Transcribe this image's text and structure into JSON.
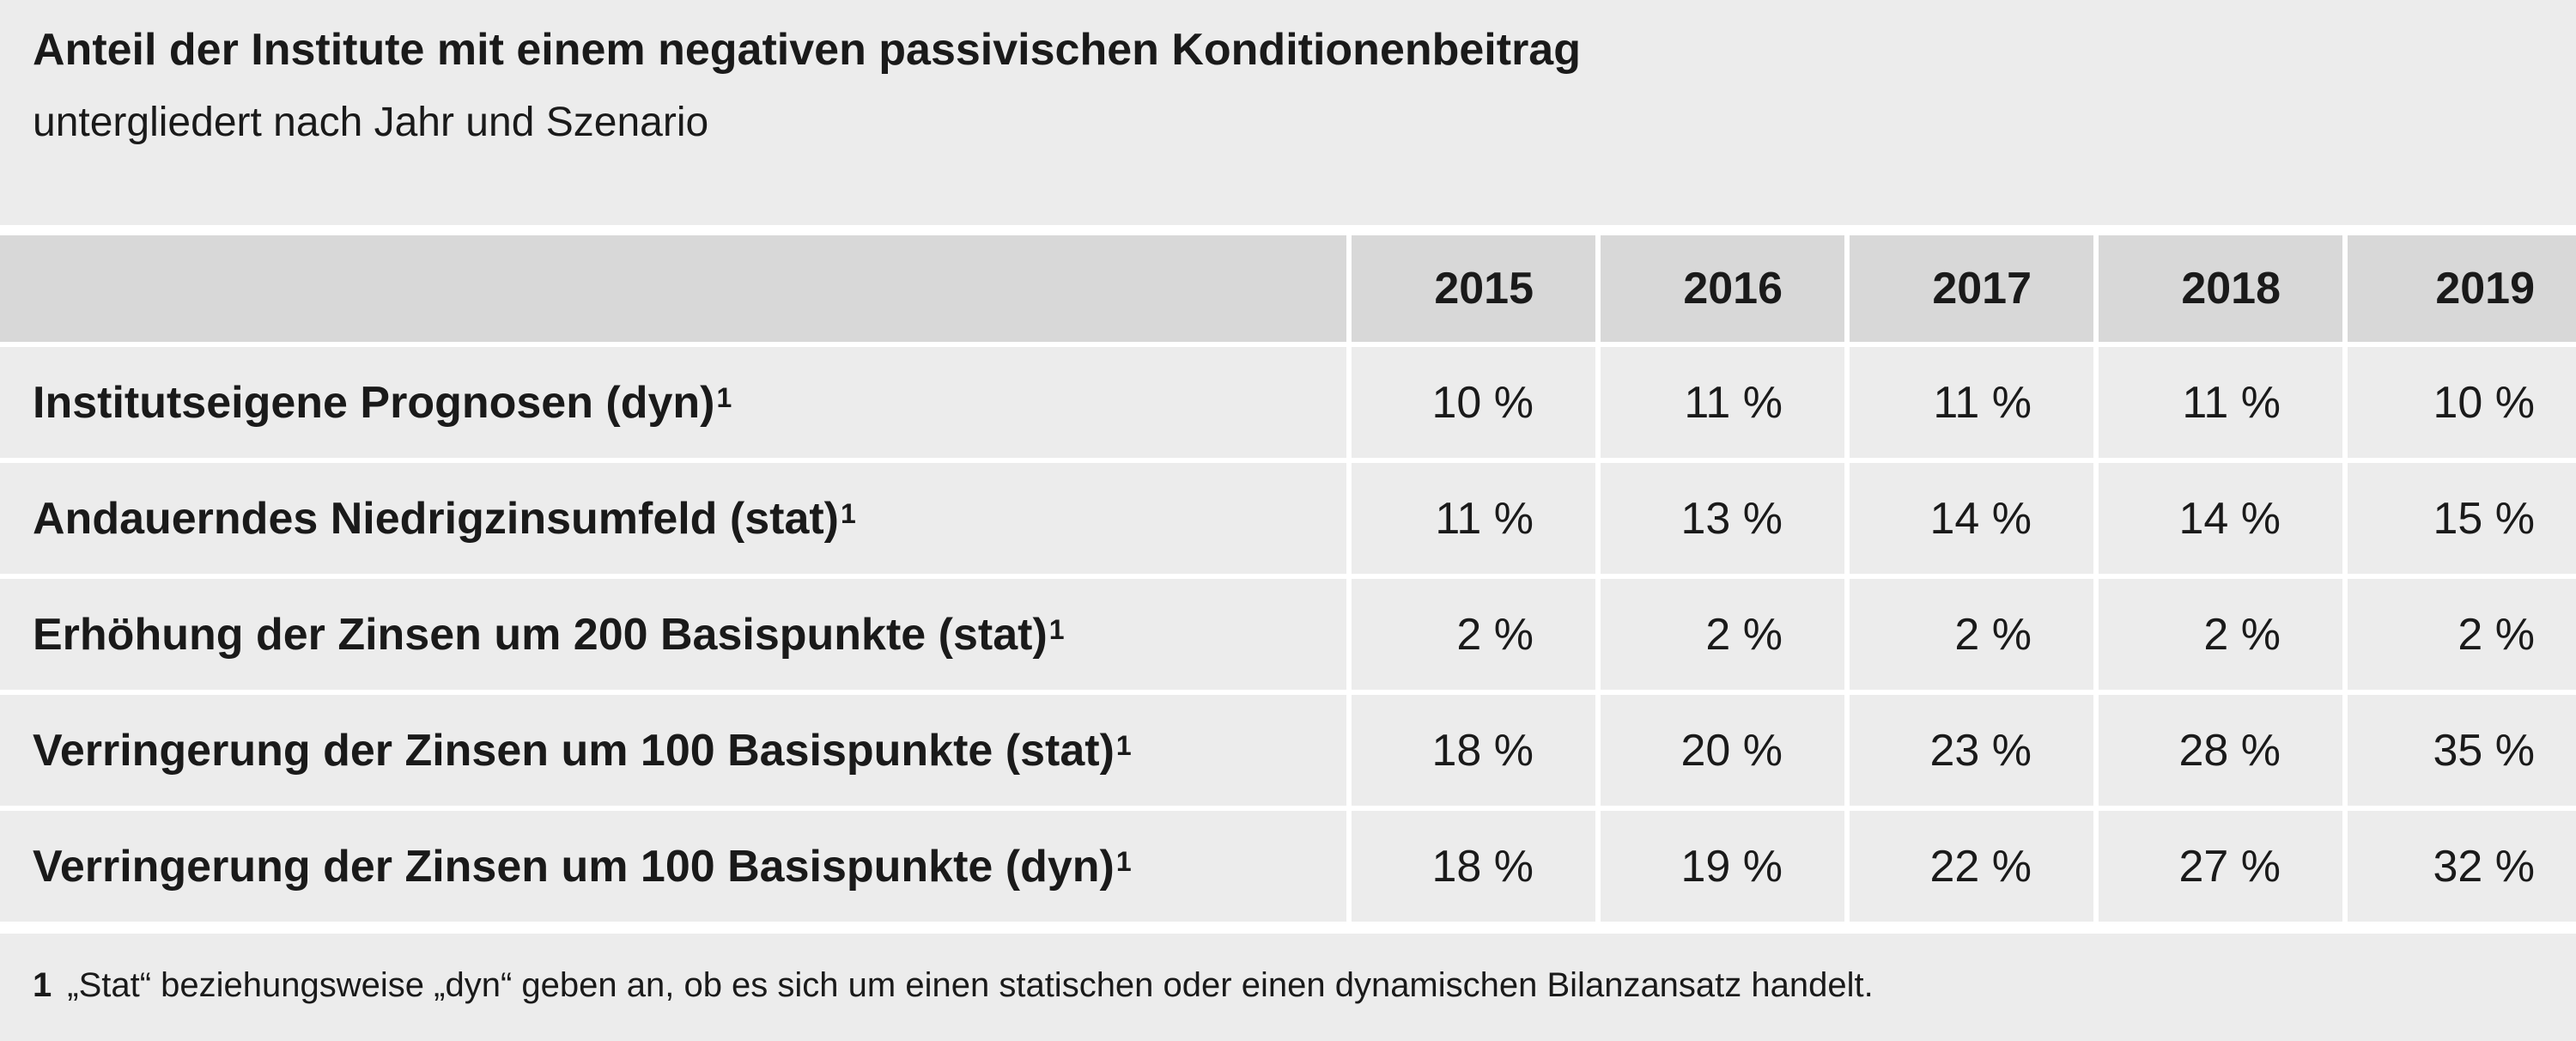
{
  "header": {
    "title": "Anteil der Institute mit einem negativen passivischen Konditionenbeitrag",
    "subtitle": "untergliedert nach Jahr und Szenario"
  },
  "chart_data": {
    "type": "table",
    "title": "Anteil der Institute mit einem negativen passivischen Konditionenbeitrag",
    "subtitle": "untergliedert nach Jahr und Szenario",
    "columns": [
      "2015",
      "2016",
      "2017",
      "2018",
      "2019"
    ],
    "rows": [
      {
        "label": "Institutseigene Prognosen (dyn)",
        "footnote_ref": "1",
        "values": [
          10,
          11,
          11,
          11,
          10
        ],
        "display": [
          "10 %",
          "11 %",
          "11 %",
          "11 %",
          "10 %"
        ]
      },
      {
        "label": "Andauerndes Niedrigzinsumfeld (stat)",
        "footnote_ref": "1",
        "values": [
          11,
          13,
          14,
          14,
          15
        ],
        "display": [
          "11 %",
          "13 %",
          "14 %",
          "14 %",
          "15 %"
        ]
      },
      {
        "label": "Erhöhung der Zinsen um 200 Basispunkte (stat)",
        "footnote_ref": "1",
        "values": [
          2,
          2,
          2,
          2,
          2
        ],
        "display": [
          "2 %",
          "2 %",
          "2 %",
          "2 %",
          "2 %"
        ]
      },
      {
        "label": "Verringerung der Zinsen um 100 Basispunkte (stat)",
        "footnote_ref": "1",
        "values": [
          18,
          20,
          23,
          28,
          35
        ],
        "display": [
          "18 %",
          "20 %",
          "23 %",
          "28 %",
          "35 %"
        ]
      },
      {
        "label": "Verringerung der Zinsen um 100 Basispunkte (dyn)",
        "footnote_ref": "1",
        "values": [
          18,
          19,
          22,
          27,
          32
        ],
        "display": [
          "18 %",
          "19 %",
          "22 %",
          "27 %",
          "32 %"
        ]
      }
    ],
    "unit": "%"
  },
  "footnote": {
    "mark": "1",
    "text": "„Stat“ beziehungsweise „dyn“ geben an, ob es sich um einen statischen oder einen dynamischen Bilanzansatz handelt."
  },
  "colors": {
    "panel_background": "#ececec",
    "header_row_background": "#d8d8d8",
    "divider": "#ffffff",
    "text": "#1a1a1a"
  }
}
